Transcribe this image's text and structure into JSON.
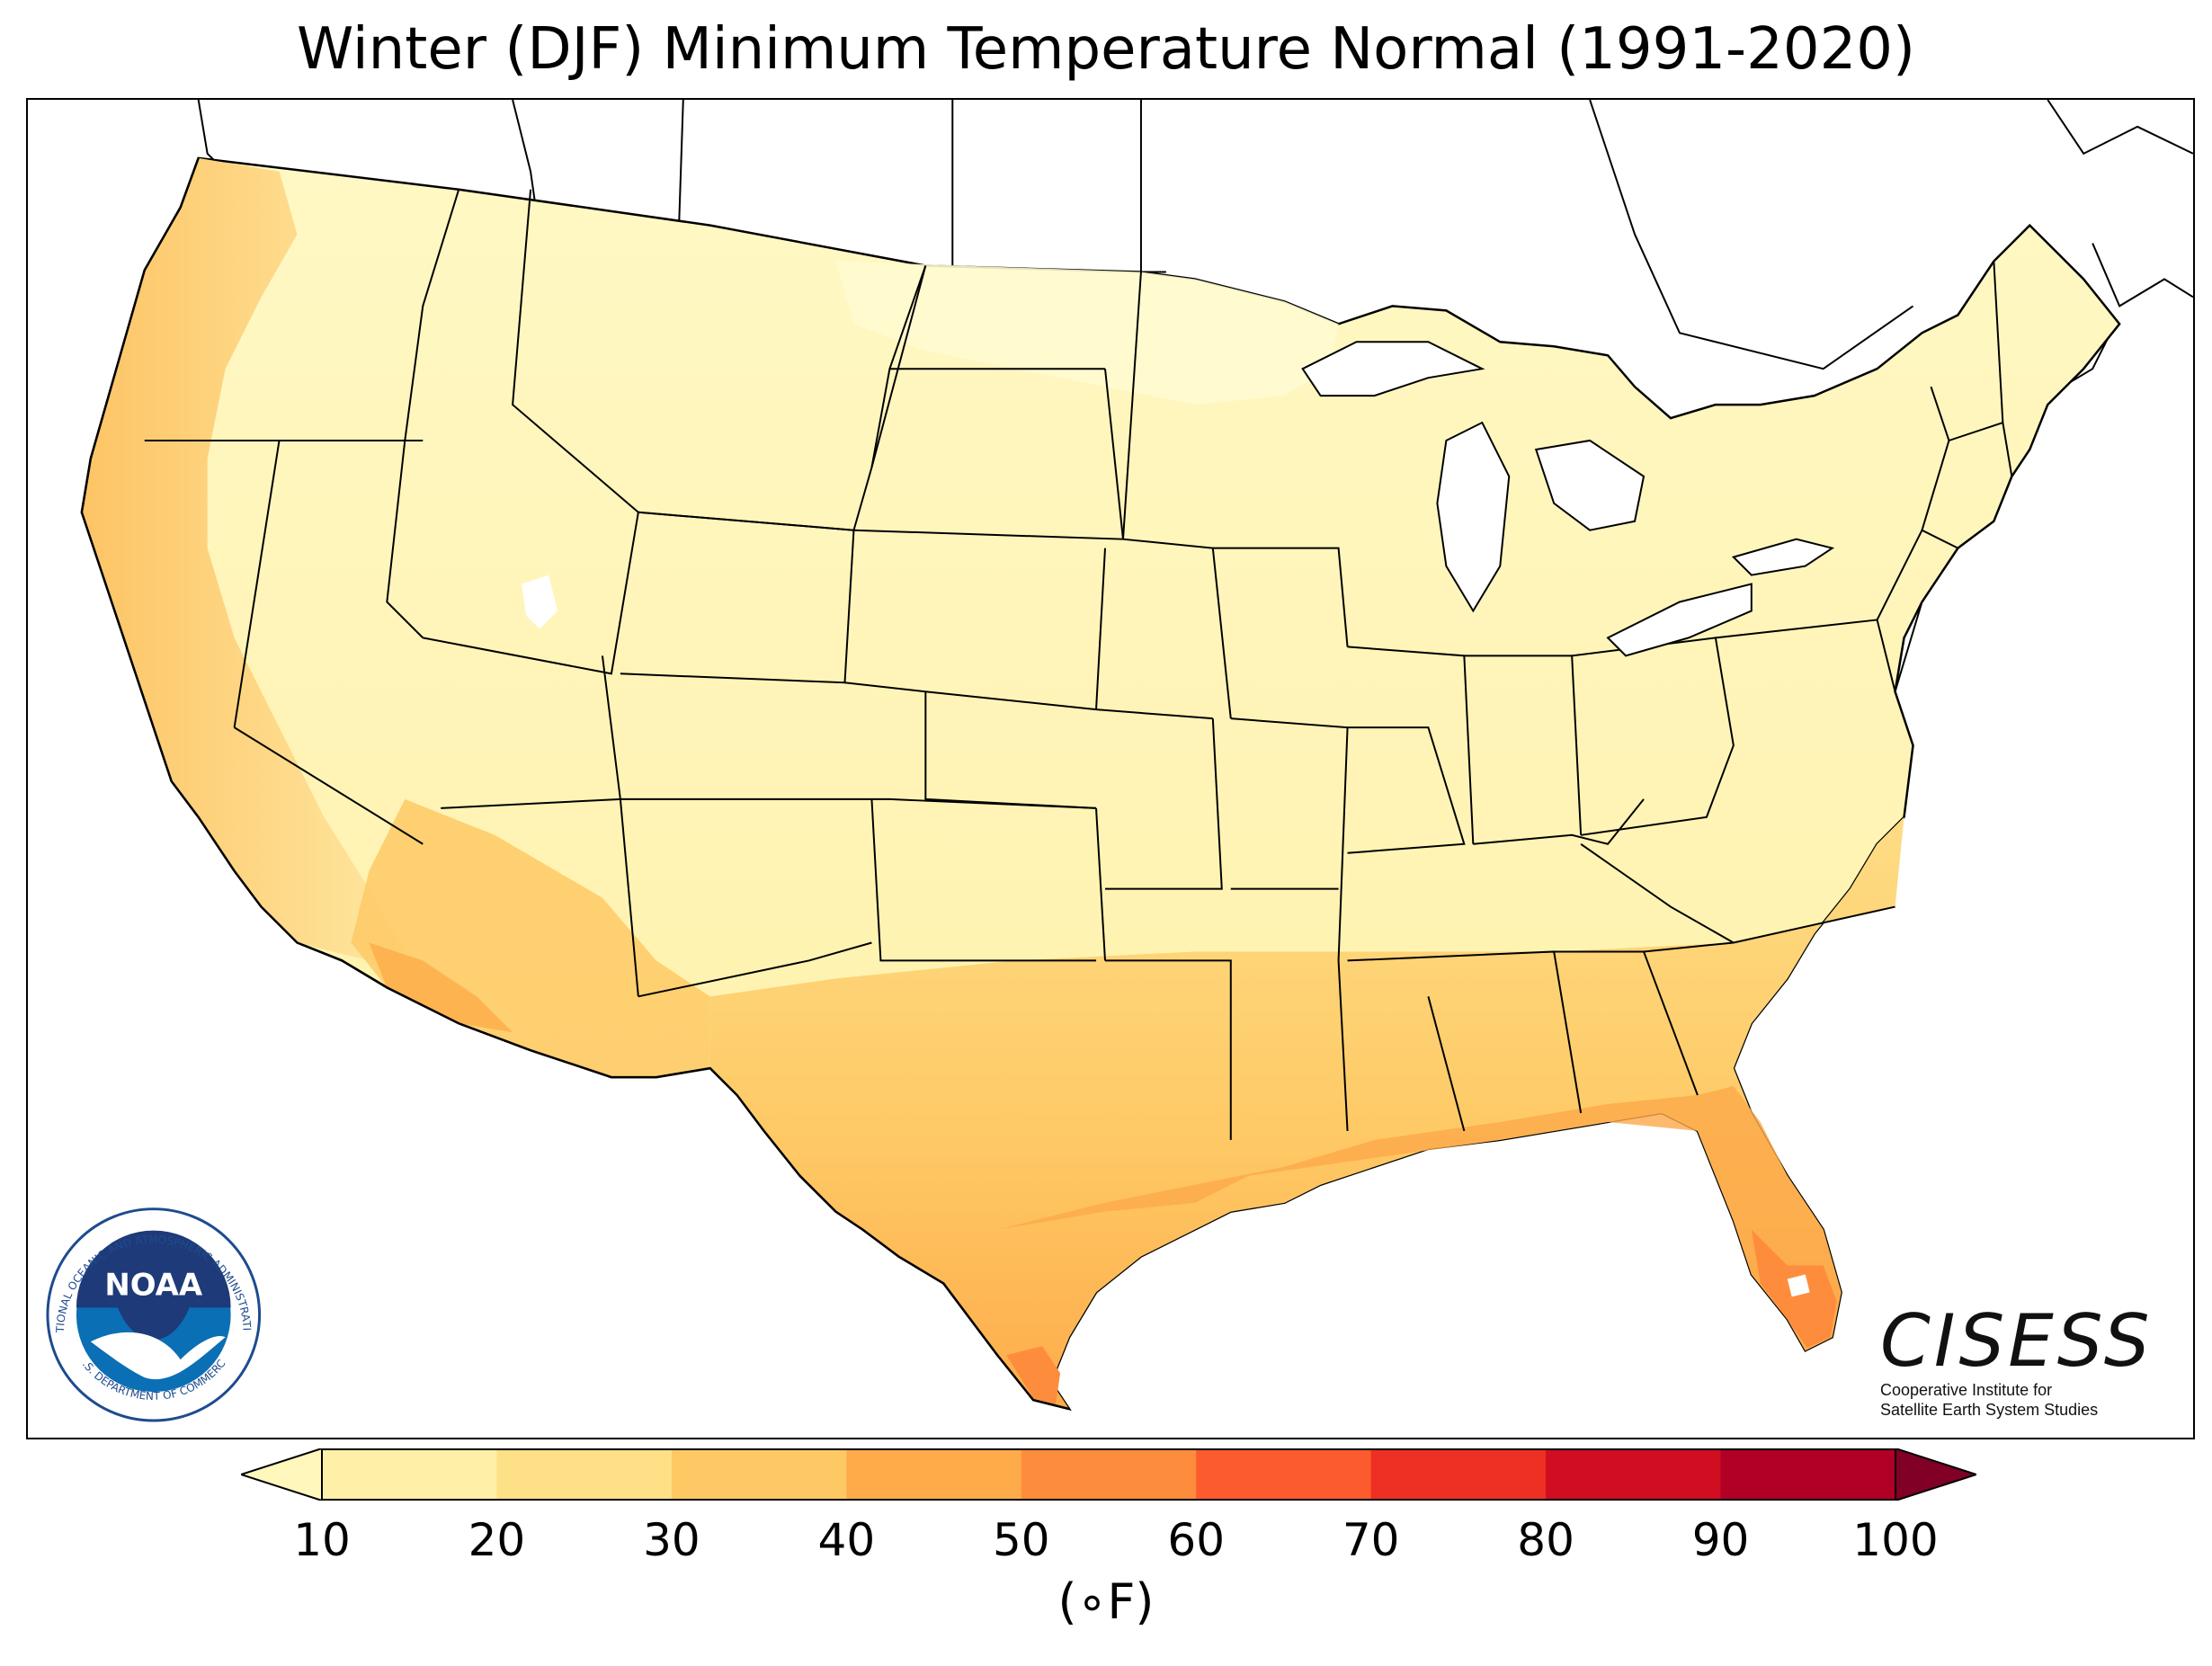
{
  "title": "Winter (DJF) Minimum Temperature Normal (1991-2020)",
  "colorbar": {
    "ticks": [
      "10",
      "20",
      "30",
      "40",
      "50",
      "60",
      "70",
      "80",
      "90",
      "100"
    ],
    "unit": "(∘F)",
    "colors": [
      "#fff0a8",
      "#fee087",
      "#fec965",
      "#feab4a",
      "#fd8d3c",
      "#fc5b2e",
      "#ee2f24",
      "#d00d21",
      "#b00026"
    ],
    "under_color": "#fff7bc",
    "over_color": "#800026",
    "extend": "both"
  },
  "map": {
    "region": "Contiguous United States",
    "background": "#ffffff",
    "borders": "state boundaries, black"
  },
  "logos": {
    "noaa": {
      "acronym": "NOAA",
      "ring_text": "NATIONAL OCEANIC AND ATMOSPHERIC ADMINISTRATION",
      "bottom_text": "U.S. DEPARTMENT OF COMMERCE"
    },
    "cisess": {
      "name": "CISESS",
      "line1": "Cooperative Institute for",
      "line2": "Satellite Earth System Studies"
    }
  }
}
